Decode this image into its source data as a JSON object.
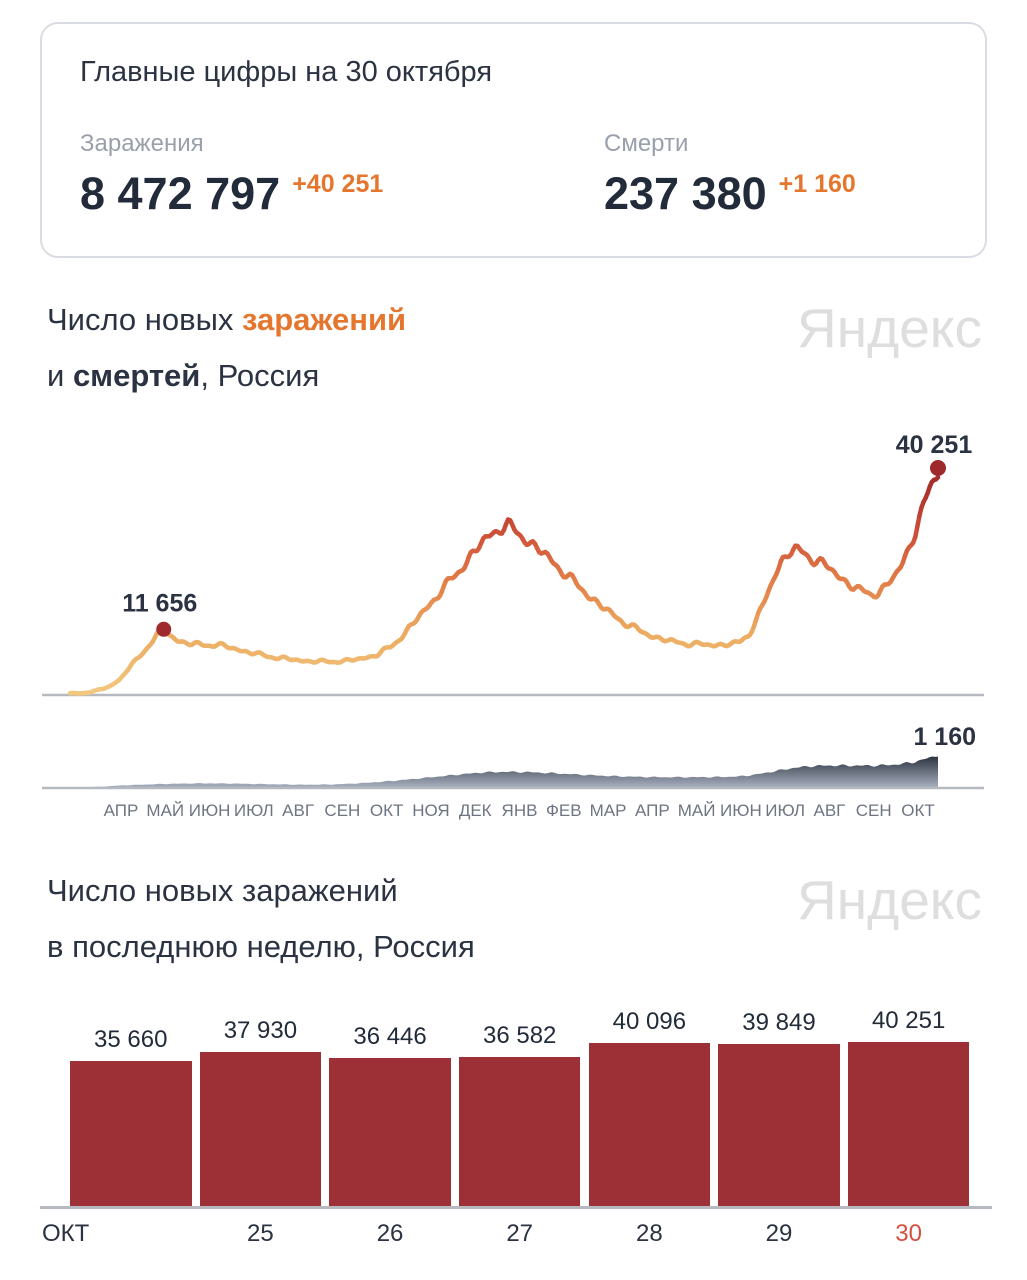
{
  "watermark": "Яндекс",
  "summary_card": {
    "title": "Главные цифры на 30 октября",
    "infections": {
      "label": "Заражения",
      "value": "8 472 797",
      "delta": "+40 251"
    },
    "deaths": {
      "label": "Смерти",
      "value": "237 380",
      "delta": "+1 160"
    }
  },
  "section1": {
    "l1a": "Число новых ",
    "l1b": "заражений",
    "l2a": "и ",
    "l2b": "смертей",
    "l2c": ", Россия"
  },
  "section2": {
    "title_line1": "Число новых заражений",
    "title_line2": "в последнюю неделю, Россия"
  },
  "colors": {
    "dark_navy": "#2b3342",
    "number_navy": "#222b3a",
    "gray_label": "#99a0ac",
    "accent_orange": "#e5762e",
    "watermark_gray": "#dedede",
    "card_border": "#d9dde3",
    "tick_gray": "#6e7582",
    "baseline_gray": "#b6b9bf",
    "bar_maroon": "#9d2f36",
    "highlight_red": "#d5503f",
    "dot_red": "#9e2a2c",
    "line_ramp": [
      "#f2c982",
      "#ecaa60",
      "#e27f48",
      "#d2573a",
      "#b83a30",
      "#9a2928"
    ],
    "area_gradient_top": "#2c3340",
    "area_gradient_bottom": "#aab2c2"
  },
  "chart_data": [
    {
      "id": "infections_timeline",
      "type": "line",
      "title": "Число новых заражений и смертей, Россия",
      "ylim": [
        0,
        40251
      ],
      "x_tick_labels": [
        "АПР",
        "МАЙ",
        "ИЮН",
        "ИЮЛ",
        "АВГ",
        "СЕН",
        "ОКТ",
        "НОЯ",
        "ДЕК",
        "ЯНВ",
        "ФЕВ",
        "МАР",
        "АПР",
        "МАЙ",
        "ИЮН",
        "ИЮЛ",
        "АВГ",
        "СЕН",
        "ОКТ"
      ],
      "annotations": [
        {
          "label": "11 656",
          "value": 11656,
          "frac": 0.108
        },
        {
          "label": "40 251",
          "value": 40251,
          "frac": 1.0
        }
      ],
      "control_points": [
        [
          0.0,
          250
        ],
        [
          0.015,
          350
        ],
        [
          0.03,
          700
        ],
        [
          0.045,
          1500
        ],
        [
          0.058,
          2800
        ],
        [
          0.07,
          5200
        ],
        [
          0.078,
          6400
        ],
        [
          0.086,
          7900
        ],
        [
          0.094,
          9500
        ],
        [
          0.102,
          10900
        ],
        [
          0.108,
          11656
        ],
        [
          0.115,
          10600
        ],
        [
          0.125,
          9600
        ],
        [
          0.14,
          9000
        ],
        [
          0.155,
          8900
        ],
        [
          0.17,
          8900
        ],
        [
          0.185,
          8400
        ],
        [
          0.2,
          7800
        ],
        [
          0.22,
          7100
        ],
        [
          0.24,
          6600
        ],
        [
          0.265,
          6100
        ],
        [
          0.29,
          5900
        ],
        [
          0.315,
          6000
        ],
        [
          0.335,
          6400
        ],
        [
          0.355,
          7200
        ],
        [
          0.37,
          8600
        ],
        [
          0.385,
          10800
        ],
        [
          0.4,
          13500
        ],
        [
          0.415,
          16200
        ],
        [
          0.43,
          18800
        ],
        [
          0.445,
          21500
        ],
        [
          0.455,
          23300
        ],
        [
          0.465,
          25200
        ],
        [
          0.475,
          27000
        ],
        [
          0.485,
          28600
        ],
        [
          0.495,
          29600
        ],
        [
          0.505,
          29900
        ],
        [
          0.515,
          28900
        ],
        [
          0.525,
          27600
        ],
        [
          0.54,
          25800
        ],
        [
          0.555,
          23800
        ],
        [
          0.57,
          21600
        ],
        [
          0.585,
          19400
        ],
        [
          0.6,
          17300
        ],
        [
          0.615,
          15400
        ],
        [
          0.63,
          13700
        ],
        [
          0.645,
          12300
        ],
        [
          0.66,
          11100
        ],
        [
          0.675,
          10200
        ],
        [
          0.69,
          9600
        ],
        [
          0.705,
          9200
        ],
        [
          0.72,
          9000
        ],
        [
          0.735,
          8900
        ],
        [
          0.75,
          8900
        ],
        [
          0.762,
          9000
        ],
        [
          0.772,
          9400
        ],
        [
          0.782,
          10800
        ],
        [
          0.79,
          13000
        ],
        [
          0.798,
          15800
        ],
        [
          0.806,
          18800
        ],
        [
          0.813,
          21600
        ],
        [
          0.82,
          23900
        ],
        [
          0.828,
          25300
        ],
        [
          0.836,
          25700
        ],
        [
          0.845,
          25100
        ],
        [
          0.855,
          24300
        ],
        [
          0.868,
          23200
        ],
        [
          0.88,
          21800
        ],
        [
          0.892,
          20300
        ],
        [
          0.903,
          19100
        ],
        [
          0.913,
          18300
        ],
        [
          0.922,
          17900
        ],
        [
          0.932,
          18300
        ],
        [
          0.941,
          19300
        ],
        [
          0.95,
          21000
        ],
        [
          0.958,
          23200
        ],
        [
          0.966,
          25900
        ],
        [
          0.974,
          29000
        ],
        [
          0.982,
          32600
        ],
        [
          0.99,
          36400
        ],
        [
          1.0,
          40251
        ]
      ]
    },
    {
      "id": "deaths_timeline",
      "type": "area",
      "title": "Число новых смертей, Россия",
      "ylim": [
        0,
        1160
      ],
      "annotations": [
        {
          "label": "1 160",
          "value": 1160,
          "frac": 1.0
        }
      ],
      "control_points": [
        [
          0.0,
          8
        ],
        [
          0.03,
          40
        ],
        [
          0.06,
          90
        ],
        [
          0.09,
          125
        ],
        [
          0.12,
          150
        ],
        [
          0.15,
          163
        ],
        [
          0.18,
          158
        ],
        [
          0.21,
          143
        ],
        [
          0.24,
          126
        ],
        [
          0.27,
          115
        ],
        [
          0.3,
          122
        ],
        [
          0.33,
          160
        ],
        [
          0.36,
          220
        ],
        [
          0.39,
          300
        ],
        [
          0.42,
          390
        ],
        [
          0.45,
          480
        ],
        [
          0.475,
          545
        ],
        [
          0.5,
          570
        ],
        [
          0.525,
          560
        ],
        [
          0.55,
          530
        ],
        [
          0.575,
          490
        ],
        [
          0.6,
          450
        ],
        [
          0.625,
          418
        ],
        [
          0.65,
          396
        ],
        [
          0.675,
          383
        ],
        [
          0.7,
          378
        ],
        [
          0.725,
          380
        ],
        [
          0.75,
          388
        ],
        [
          0.77,
          405
        ],
        [
          0.79,
          470
        ],
        [
          0.81,
          580
        ],
        [
          0.83,
          690
        ],
        [
          0.85,
          760
        ],
        [
          0.87,
          788
        ],
        [
          0.89,
          792
        ],
        [
          0.91,
          786
        ],
        [
          0.93,
          790
        ],
        [
          0.945,
          812
        ],
        [
          0.958,
          845
        ],
        [
          0.97,
          900
        ],
        [
          0.98,
          975
        ],
        [
          0.99,
          1060
        ],
        [
          1.0,
          1160
        ]
      ]
    },
    {
      "id": "weekly_bars",
      "type": "bar",
      "title": "Число новых заражений в последнюю неделю, Россия",
      "ylim": [
        0,
        40251
      ],
      "categories": [
        "ОКТ",
        "25",
        "26",
        "27",
        "28",
        "29",
        "30"
      ],
      "values": [
        35660,
        37930,
        36446,
        36582,
        40096,
        39849,
        40251
      ],
      "value_labels": [
        "35 660",
        "37 930",
        "36 446",
        "36 582",
        "40 096",
        "39 849",
        "40 251"
      ],
      "highlight_last_category": true
    }
  ]
}
